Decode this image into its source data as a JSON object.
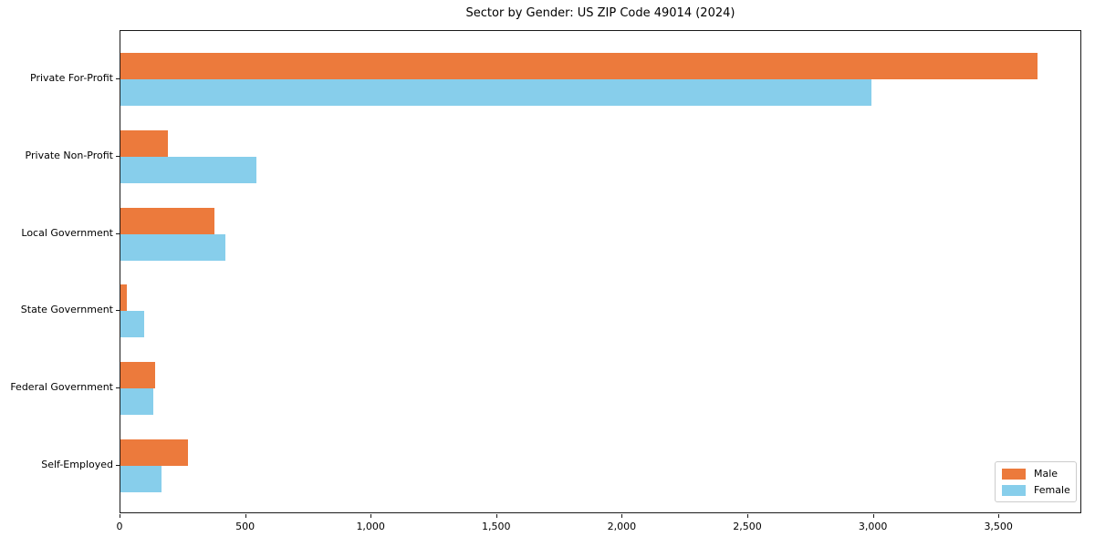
{
  "chart_data": {
    "type": "bar",
    "orientation": "horizontal",
    "title": "Sector by Gender: US ZIP Code 49014 (2024)",
    "categories": [
      "Private For-Profit",
      "Private Non-Profit",
      "Local Government",
      "State Government",
      "Federal Government",
      "Self-Employed"
    ],
    "series": [
      {
        "name": "Male",
        "color": "#ec7a3c",
        "values": [
          3650,
          190,
          375,
          25,
          138,
          270
        ]
      },
      {
        "name": "Female",
        "color": "#87ceeb",
        "values": [
          2990,
          542,
          417,
          96,
          132,
          165
        ]
      }
    ],
    "xlim": [
      0,
      3830
    ],
    "xticks": [
      0,
      500,
      1000,
      1500,
      2000,
      2500,
      3000,
      3500
    ],
    "xtick_labels": [
      "0",
      "500",
      "1,000",
      "1,500",
      "2,000",
      "2,500",
      "3,000",
      "3,500"
    ],
    "legend_position": "lower right",
    "grid": false,
    "axis_color": "#1a1a1a",
    "background": "#ffffff"
  }
}
